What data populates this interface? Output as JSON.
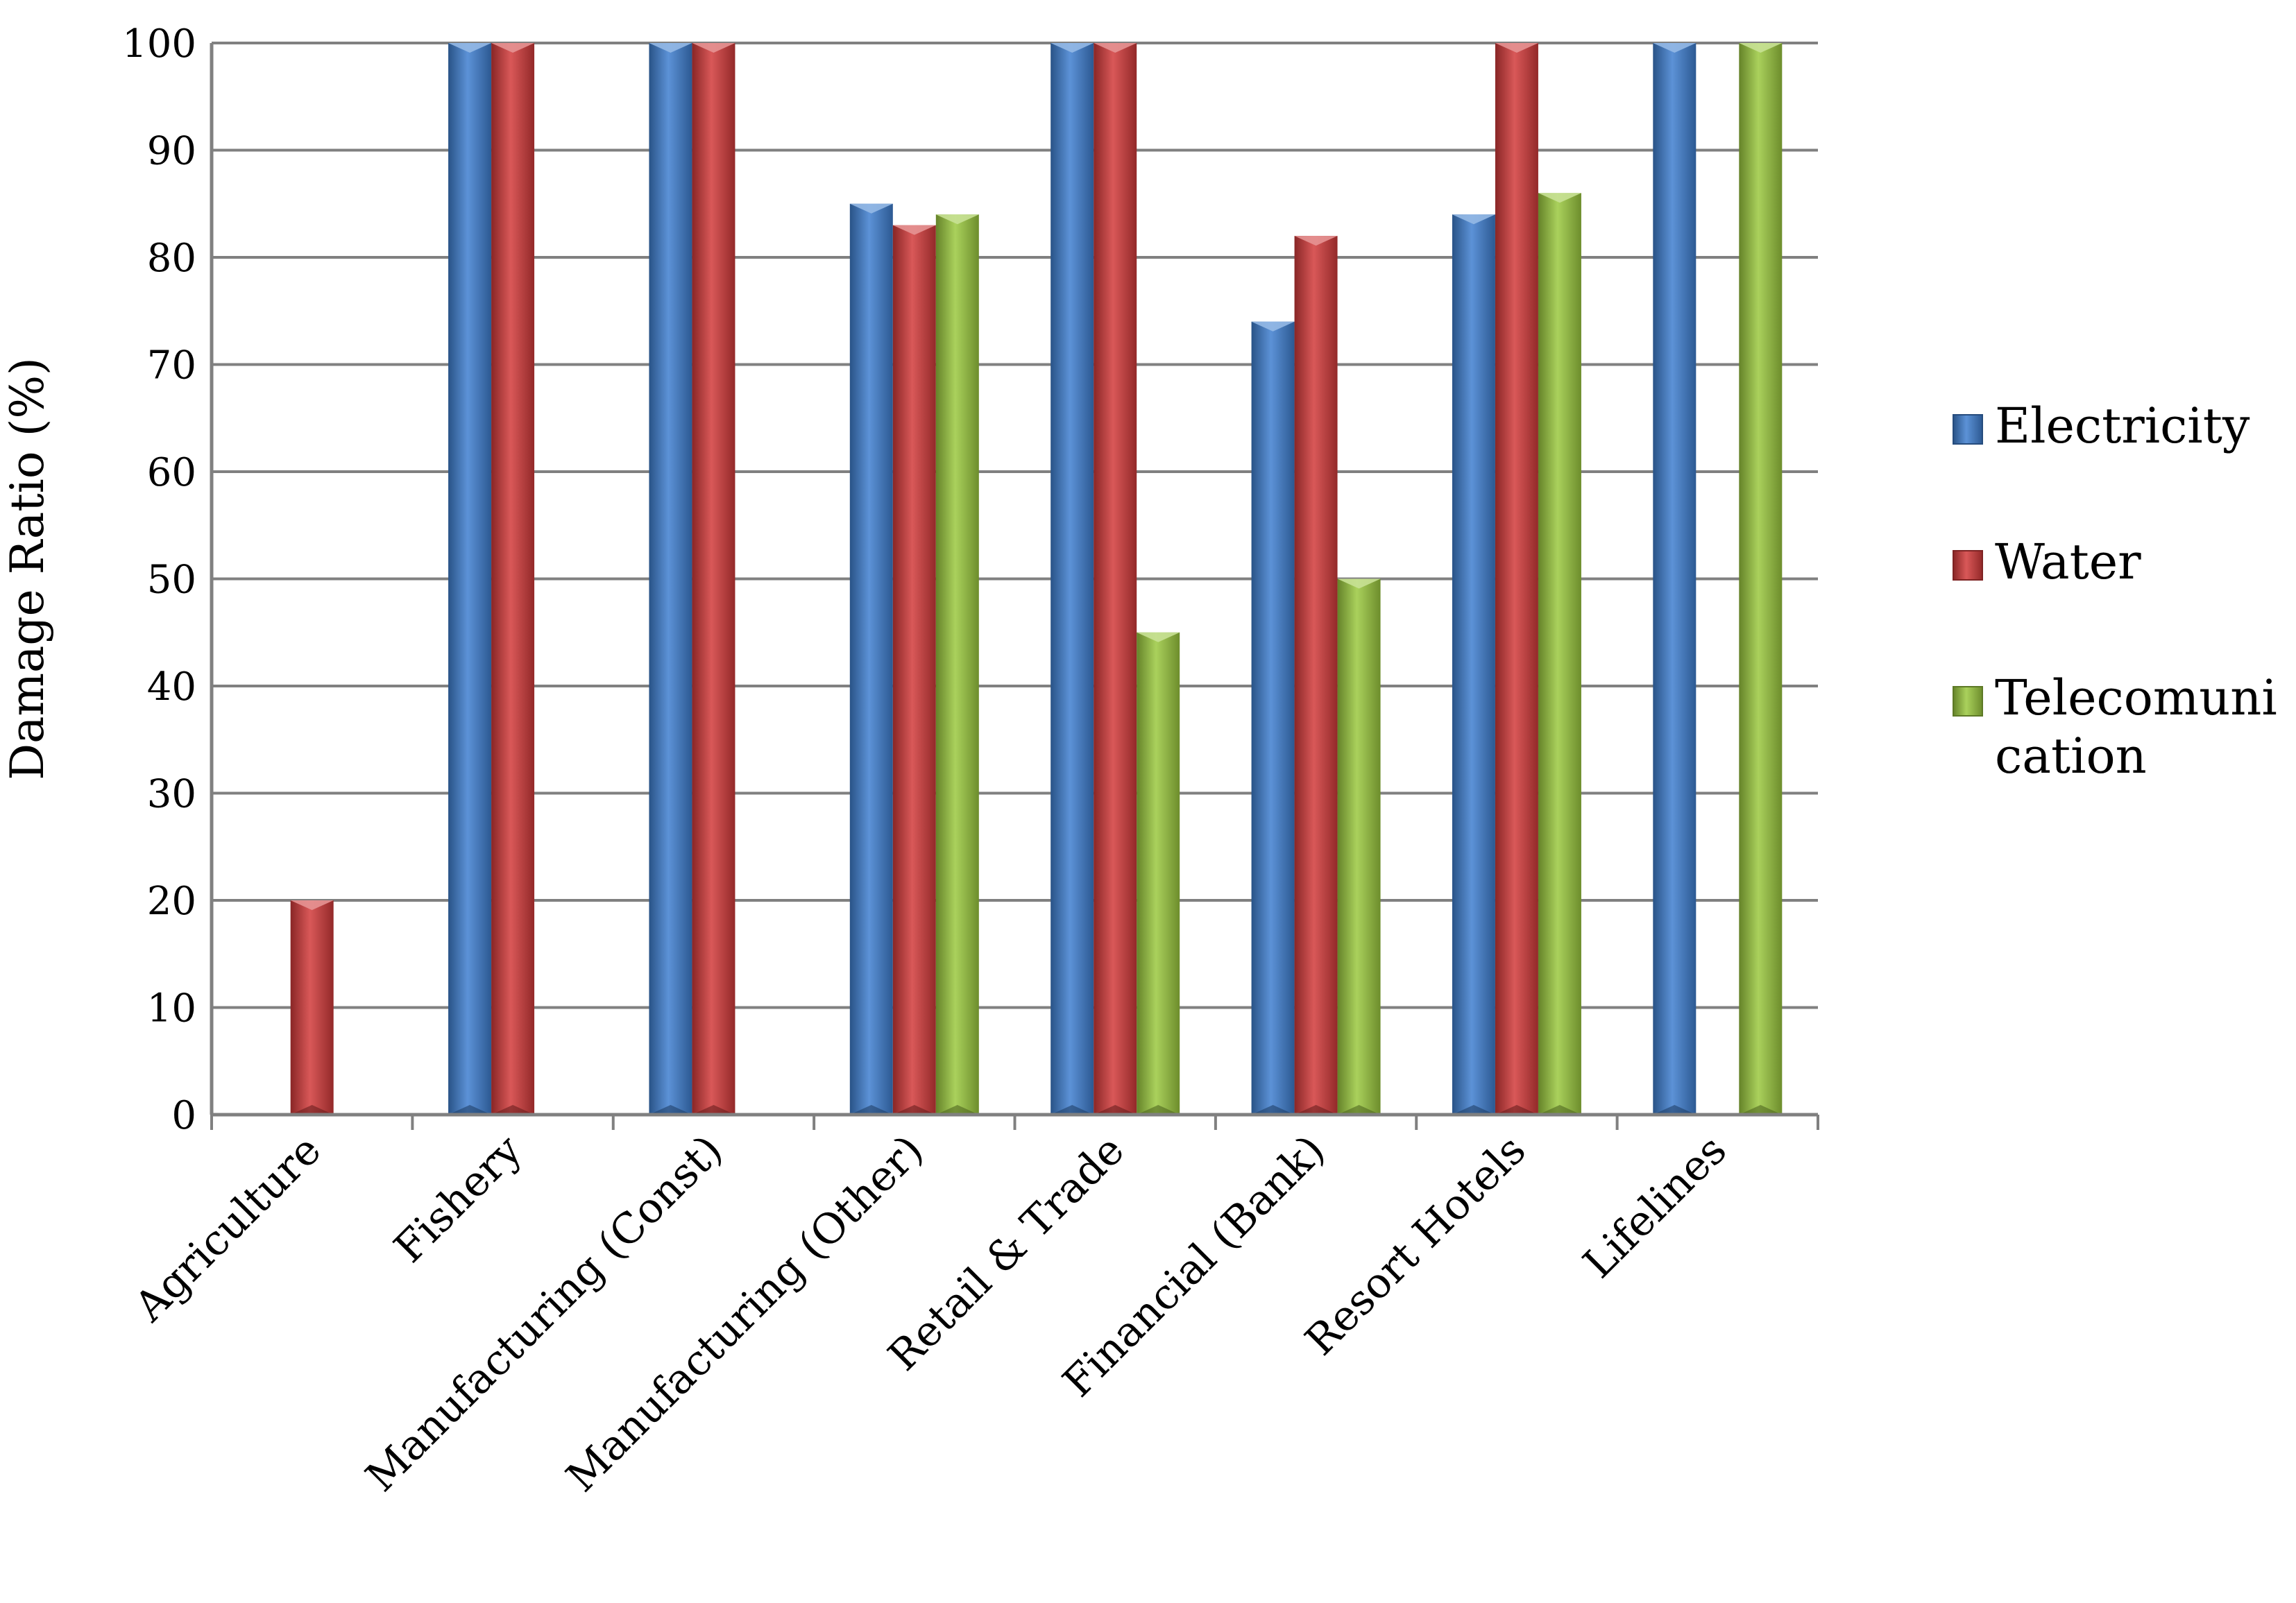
{
  "chart_data": {
    "type": "bar",
    "title": "",
    "xlabel": "",
    "ylabel": "Damage Ratio (%)",
    "ylim": [
      0,
      100
    ],
    "yticks": [
      "0",
      "10",
      "20",
      "30",
      "40",
      "50",
      "60",
      "70",
      "80",
      "90",
      "100"
    ],
    "grid": true,
    "legend_position": "right",
    "categories": [
      "Agriculture",
      "Fishery",
      "Manufacturing (Const)",
      "Manufacturing (Other)",
      "Retail & Trade",
      "Financial (Bank)",
      "Resort Hotels",
      "Lifelines"
    ],
    "series": [
      {
        "name": "Electricity",
        "color": "#3f7fd0",
        "values": [
          0,
          100,
          100,
          85,
          100,
          74,
          84,
          100
        ]
      },
      {
        "name": "Water",
        "color": "#d23b3b",
        "values": [
          20,
          100,
          100,
          83,
          100,
          82,
          100,
          0
        ]
      },
      {
        "name": "Telecomunication",
        "color": "#9bc93f",
        "values": [
          0,
          0,
          0,
          84,
          45,
          50,
          86,
          100
        ]
      }
    ]
  }
}
